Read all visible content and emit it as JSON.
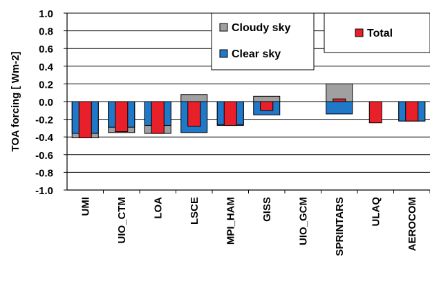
{
  "chart_data": {
    "type": "bar",
    "title": "",
    "xlabel": "",
    "ylabel": "TOA forcing [ Wm-2]",
    "ylim": [
      -1.0,
      1.0
    ],
    "yticks": [
      "1.0",
      "0.8",
      "0.6",
      "0.4",
      "0.2",
      "0.0",
      "-0.2",
      "-0.4",
      "-0.6",
      "-0.8",
      "-1.0"
    ],
    "ytick_values": [
      1.0,
      0.8,
      0.6,
      0.4,
      0.2,
      0.0,
      -0.2,
      -0.4,
      -0.6,
      -0.8,
      -1.0
    ],
    "grid": true,
    "categories": [
      "UMI",
      "UIO_CTM",
      "LOA",
      "LSCE",
      "MPI_HAM",
      "GISS",
      "UIO_GCM",
      "SPRINTARS",
      "ULAQ",
      "AEROCOM"
    ],
    "series": [
      {
        "name": "Cloudy sky",
        "color": "#a0a0a0",
        "values": [
          -0.41,
          -0.35,
          -0.36,
          0.08,
          -0.27,
          0.06,
          null,
          0.2,
          null,
          -0.22
        ]
      },
      {
        "name": "Clear sky",
        "color": "#1f78c8",
        "values": [
          -0.36,
          -0.29,
          -0.27,
          -0.35,
          -0.26,
          -0.15,
          null,
          -0.14,
          null,
          -0.22
        ]
      },
      {
        "name": "Total",
        "color": "#e8202a",
        "values": [
          -0.41,
          -0.34,
          -0.36,
          -0.28,
          -0.27,
          -0.1,
          null,
          0.03,
          -0.24,
          -0.22
        ]
      }
    ],
    "legend": {
      "placement": "top",
      "box_one": [
        "Cloudy sky",
        "Clear sky"
      ],
      "box_two": [
        "Total"
      ]
    }
  }
}
